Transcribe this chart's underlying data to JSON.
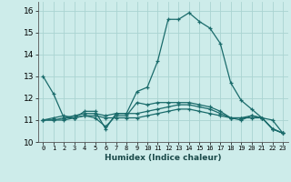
{
  "xlabel": "Humidex (Indice chaleur)",
  "bg_color": "#cdecea",
  "grid_color": "#aad4d1",
  "line_color": "#1a6b6b",
  "xlim": [
    -0.5,
    23.5
  ],
  "ylim": [
    10.0,
    16.4
  ],
  "xticks": [
    0,
    1,
    2,
    3,
    4,
    5,
    6,
    7,
    8,
    9,
    10,
    11,
    12,
    13,
    14,
    15,
    16,
    17,
    18,
    19,
    20,
    21,
    22,
    23
  ],
  "yticks": [
    10,
    11,
    12,
    13,
    14,
    15,
    16
  ],
  "lines": [
    {
      "x": [
        0,
        1,
        2,
        3,
        4,
        5,
        6,
        7,
        8,
        9,
        10,
        11,
        12,
        13,
        14,
        15,
        16,
        17,
        18,
        19,
        20,
        21,
        22,
        23
      ],
      "y": [
        13.0,
        12.2,
        11.1,
        11.1,
        11.4,
        11.4,
        10.6,
        11.3,
        11.3,
        12.3,
        12.5,
        13.7,
        15.6,
        15.6,
        15.9,
        15.5,
        15.2,
        14.5,
        12.7,
        11.9,
        11.5,
        11.1,
        10.6,
        10.4
      ]
    },
    {
      "x": [
        0,
        1,
        2,
        3,
        4,
        5,
        6,
        7,
        8,
        9,
        10,
        11,
        12,
        13,
        14,
        15,
        16,
        17,
        18,
        19,
        20,
        21,
        22,
        23
      ],
      "y": [
        11.0,
        11.0,
        11.0,
        11.1,
        11.2,
        11.2,
        11.1,
        11.1,
        11.1,
        11.1,
        11.2,
        11.3,
        11.4,
        11.5,
        11.5,
        11.4,
        11.3,
        11.2,
        11.1,
        11.1,
        11.1,
        11.1,
        11.0,
        10.4
      ]
    },
    {
      "x": [
        0,
        1,
        2,
        3,
        4,
        5,
        6,
        7,
        8,
        9,
        10,
        11,
        12,
        13,
        14,
        15,
        16,
        17,
        18,
        19,
        20,
        21,
        22,
        23
      ],
      "y": [
        11.0,
        11.0,
        11.1,
        11.2,
        11.3,
        11.3,
        11.2,
        11.3,
        11.3,
        11.3,
        11.4,
        11.5,
        11.6,
        11.7,
        11.7,
        11.6,
        11.5,
        11.3,
        11.1,
        11.1,
        11.2,
        11.1,
        10.6,
        10.4
      ]
    },
    {
      "x": [
        0,
        1,
        2,
        3,
        4,
        5,
        6,
        7,
        8,
        9,
        10,
        11,
        12,
        13,
        14,
        15,
        16,
        17,
        18,
        19,
        20,
        21,
        22,
        23
      ],
      "y": [
        11.0,
        11.1,
        11.2,
        11.1,
        11.2,
        11.1,
        10.7,
        11.2,
        11.2,
        11.8,
        11.7,
        11.8,
        11.8,
        11.8,
        11.8,
        11.7,
        11.6,
        11.4,
        11.1,
        11.0,
        11.2,
        11.1,
        10.6,
        10.4
      ]
    }
  ]
}
